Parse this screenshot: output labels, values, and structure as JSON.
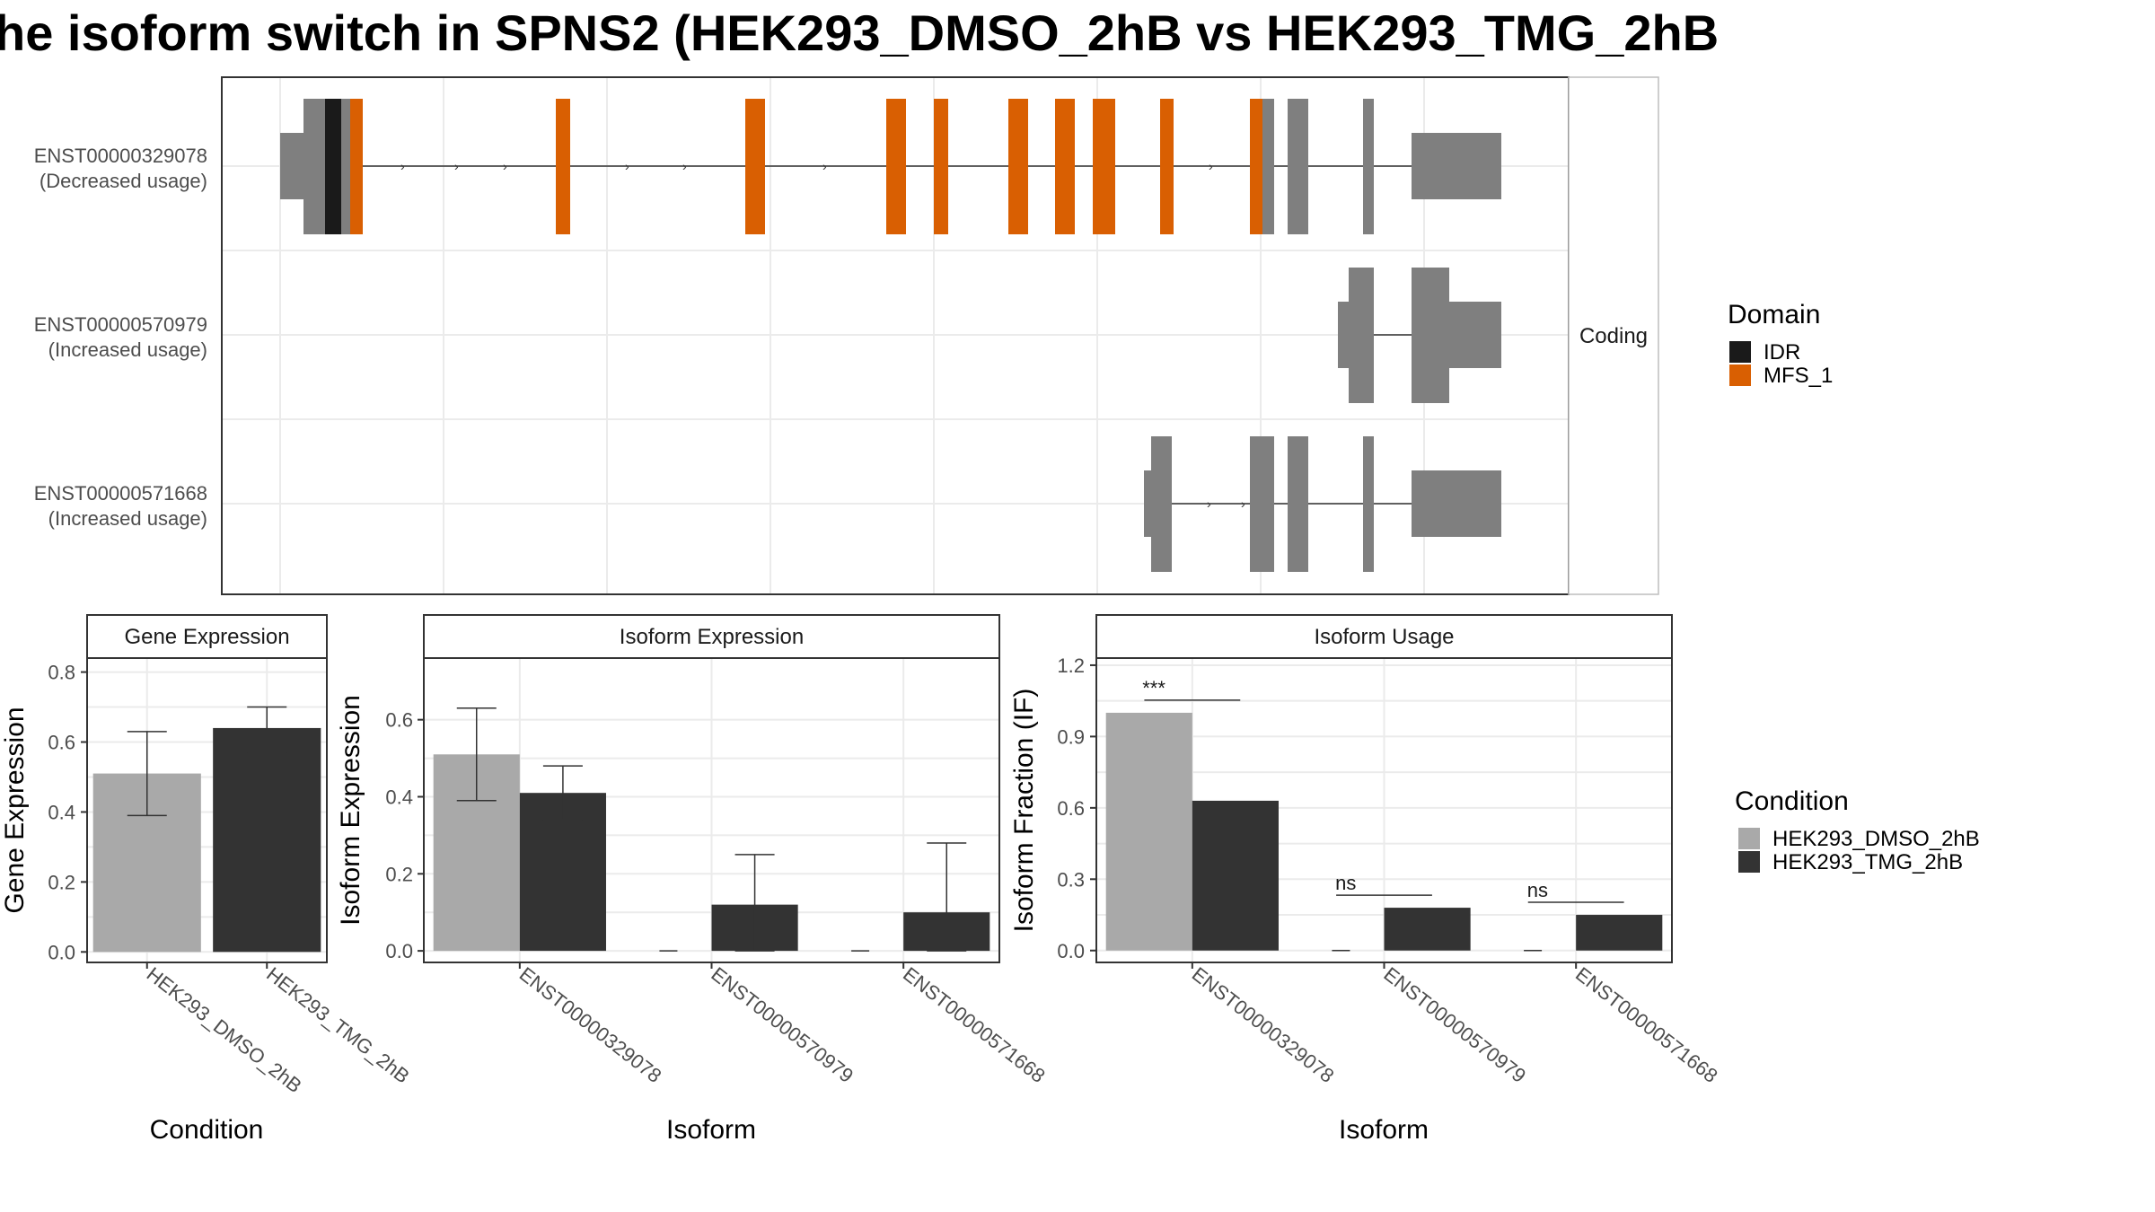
{
  "title": "he isoform switch in SPNS2 (HEK293_DMSO_2hB vs HEK293_TMG_2hB",
  "colors": {
    "idr": "#1a1a1a",
    "mfs": "#d95f02",
    "exon": "#7f7f7f",
    "dmso": "#a9a9a9",
    "tmg": "#333333"
  },
  "chart_data": [
    {
      "type": "gene-structure",
      "panel_label": "Coding",
      "transcripts": [
        {
          "id": "ENST00000329078",
          "usage": "(Decreased usage)"
        },
        {
          "id": "ENST00000570979",
          "usage": "(Increased usage)"
        },
        {
          "id": "ENST00000571668",
          "usage": "(Increased usage)"
        }
      ],
      "legend": {
        "title": "Domain",
        "items": [
          "IDR",
          "MFS_1"
        ]
      }
    },
    {
      "type": "bar",
      "strip": "Gene Expression",
      "xlabel": "Condition",
      "ylabel": "Gene Expression",
      "ylim": [
        -0.03,
        0.84
      ],
      "yticks": [
        "0.0",
        "0.2",
        "0.4",
        "0.6",
        "0.8"
      ],
      "categories": [
        "HEK293_DMSO_2hB",
        "HEK293_TMG_2hB"
      ],
      "values": [
        0.51,
        0.64
      ],
      "errors": [
        [
          0.39,
          0.63
        ],
        [
          0.57,
          0.7
        ]
      ]
    },
    {
      "type": "bar",
      "strip": "Isoform Expression",
      "xlabel": "Isoform",
      "ylabel": "Isoform Expression",
      "ylim": [
        -0.03,
        0.76
      ],
      "yticks": [
        "0.0",
        "0.2",
        "0.4",
        "0.6"
      ],
      "categories": [
        "ENST00000329078",
        "ENST00000570979",
        "ENST00000571668"
      ],
      "series": [
        {
          "name": "HEK293_DMSO_2hB",
          "values": [
            0.51,
            0.0,
            0.0
          ],
          "errors": [
            [
              0.39,
              0.63
            ],
            null,
            null
          ]
        },
        {
          "name": "HEK293_TMG_2hB",
          "values": [
            0.41,
            0.12,
            0.1
          ],
          "errors": [
            [
              0.34,
              0.48
            ],
            [
              0.0,
              0.25
            ],
            [
              0.0,
              0.28
            ]
          ]
        }
      ]
    },
    {
      "type": "bar",
      "strip": "Isoform Usage",
      "xlabel": "Isoform",
      "ylabel": "Isoform Fraction (IF)",
      "ylim": [
        -0.05,
        1.23
      ],
      "yticks": [
        "0.0",
        "0.3",
        "0.6",
        "0.9",
        "1.2"
      ],
      "categories": [
        "ENST00000329078",
        "ENST00000570979",
        "ENST00000571668"
      ],
      "series": [
        {
          "name": "HEK293_DMSO_2hB",
          "values": [
            1.0,
            0.0,
            0.0
          ]
        },
        {
          "name": "HEK293_TMG_2hB",
          "values": [
            0.63,
            0.18,
            0.15
          ]
        }
      ],
      "significance": [
        "***",
        "ns",
        "ns"
      ]
    }
  ],
  "condition_legend": {
    "title": "Condition",
    "items": [
      "HEK293_DMSO_2hB",
      "HEK293_TMG_2hB"
    ]
  }
}
